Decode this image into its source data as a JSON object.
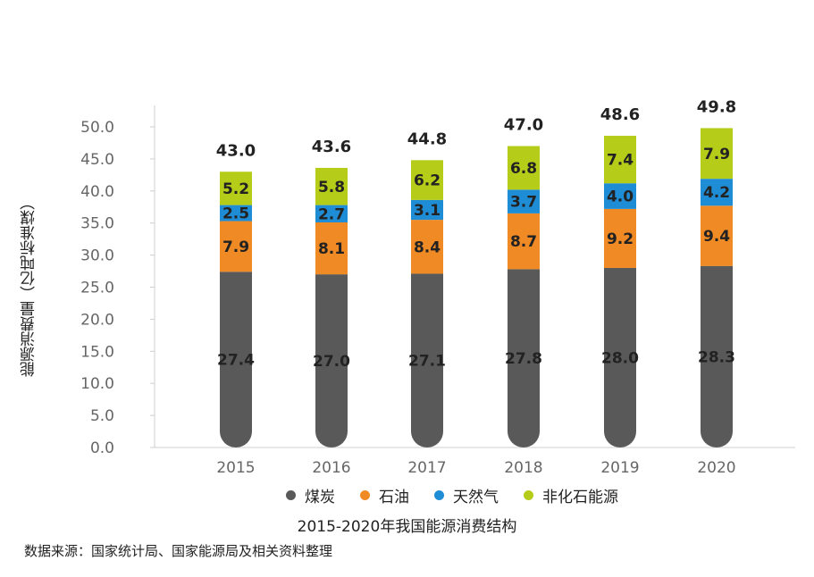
{
  "chart_data": {
    "type": "bar",
    "stacked": true,
    "categories": [
      "2015",
      "2016",
      "2017",
      "2018",
      "2019",
      "2020"
    ],
    "series": [
      {
        "name": "煤炭",
        "color": "#595959",
        "values": [
          27.4,
          27.0,
          27.1,
          27.8,
          28.0,
          28.3
        ]
      },
      {
        "name": "石油",
        "color": "#f08a24",
        "values": [
          7.9,
          8.1,
          8.4,
          8.7,
          9.2,
          9.4
        ]
      },
      {
        "name": "天然气",
        "color": "#1f8dd6",
        "values": [
          2.5,
          2.7,
          3.1,
          3.7,
          4.0,
          4.2
        ]
      },
      {
        "name": "非化石能源",
        "color": "#b5cc18",
        "values": [
          5.2,
          5.8,
          6.2,
          6.8,
          7.4,
          7.9
        ]
      }
    ],
    "totals": [
      "43.0",
      "43.6",
      "44.8",
      "47.0",
      "48.6",
      "49.8"
    ],
    "ylabel": "能源消费量（亿吨标准煤）",
    "ylim": [
      0,
      50
    ],
    "yticks": [
      "0.0",
      "5.0",
      "10.0",
      "15.0",
      "20.0",
      "25.0",
      "30.0",
      "35.0",
      "40.0",
      "45.0",
      "50.0"
    ],
    "legend_position": "bottom"
  },
  "caption": "2015-2020年我国能源消费结构",
  "source_note": "数据来源：国家统计局、国家能源局及相关资料整理"
}
